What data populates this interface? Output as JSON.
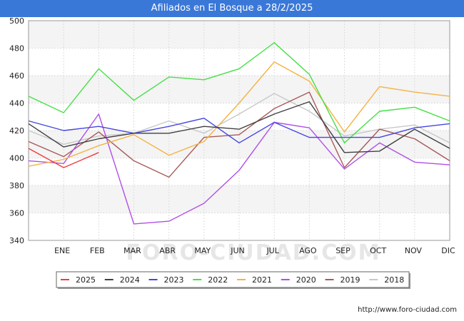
{
  "title": "Afiliados en El Bosque a 28/2/2025",
  "source": "http://www.foro-ciudad.com",
  "watermark": "FORO-CIUDAD.COM",
  "chart_data": {
    "type": "line",
    "title": "Afiliados en El Bosque a 28/2/2025",
    "categories": [
      "",
      "ENE",
      "FEB",
      "MAR",
      "ABR",
      "MAY",
      "JUN",
      "JUL",
      "AGO",
      "SEP",
      "OCT",
      "NOV",
      "DIC"
    ],
    "yticks": [
      340,
      360,
      380,
      400,
      420,
      440,
      460,
      480,
      500
    ],
    "ylim": [
      340,
      500
    ],
    "grid": true,
    "legend_position": "bottom",
    "series": [
      {
        "name": "2025",
        "color": "#f03c3c",
        "values": [
          407,
          393,
          404,
          null,
          null,
          null,
          null,
          null,
          null,
          null,
          null,
          null,
          null
        ]
      },
      {
        "name": "2024",
        "color": "#404040",
        "values": [
          425,
          408,
          414,
          418,
          418,
          423,
          421,
          432,
          441,
          404,
          405,
          421,
          407
        ]
      },
      {
        "name": "2023",
        "color": "#4646e0",
        "values": [
          427,
          420,
          423,
          418,
          423,
          429,
          411,
          426,
          415,
          415,
          415,
          422,
          425
        ]
      },
      {
        "name": "2022",
        "color": "#46e046",
        "values": [
          445,
          433,
          465,
          442,
          459,
          457,
          465,
          484,
          461,
          411,
          434,
          437,
          427
        ]
      },
      {
        "name": "2021",
        "color": "#f5b342",
        "values": [
          394,
          399,
          409,
          417,
          402,
          412,
          440,
          470,
          456,
          419,
          452,
          448,
          445
        ]
      },
      {
        "name": "2020",
        "color": "#b050e8",
        "values": [
          398,
          396,
          432,
          352,
          354,
          367,
          391,
          426,
          422,
          392,
          411,
          397,
          395
        ]
      },
      {
        "name": "2019",
        "color": "#a85a5a",
        "values": [
          412,
          401,
          419,
          398,
          386,
          415,
          417,
          436,
          448,
          393,
          421,
          414,
          398
        ]
      },
      {
        "name": "2018",
        "color": "#c8c8c8",
        "values": [
          420,
          410,
          416,
          418,
          427,
          418,
          432,
          447,
          434,
          416,
          421,
          424,
          411
        ]
      }
    ]
  }
}
